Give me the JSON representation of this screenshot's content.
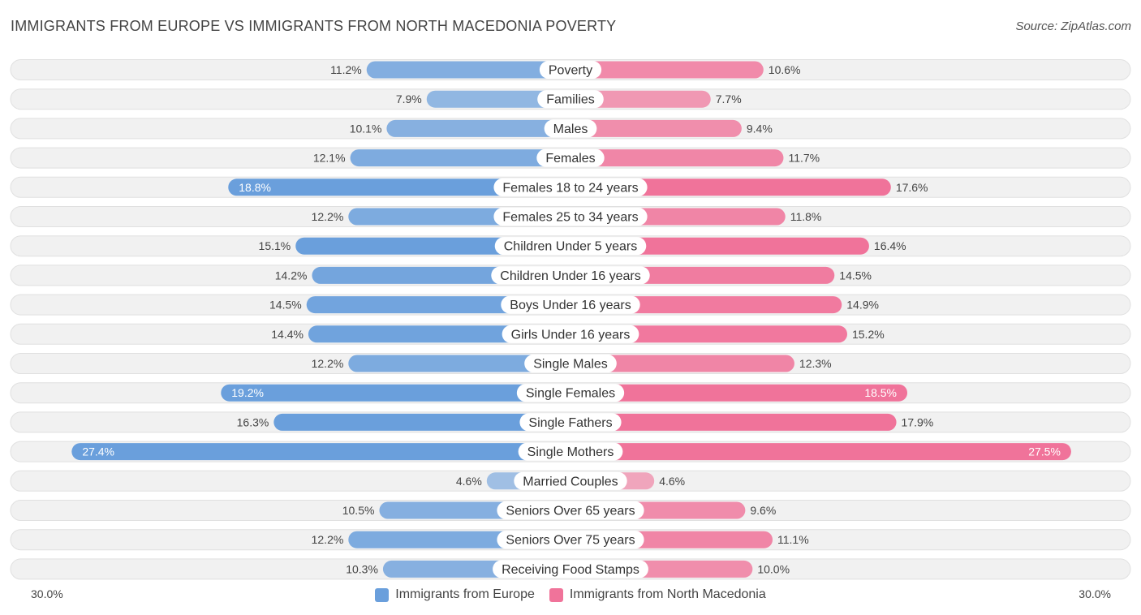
{
  "chart_data": {
    "type": "bar",
    "orientation": "horizontal-diverging",
    "title": "IMMIGRANTS FROM EUROPE VS IMMIGRANTS FROM NORTH MACEDONIA POVERTY",
    "source": "Source: ZipAtlas.com",
    "xlim": [
      0,
      30.0
    ],
    "axis_min_label": "30.0%",
    "axis_max_label": "30.0%",
    "categories": [
      "Poverty",
      "Families",
      "Males",
      "Females",
      "Females 18 to 24 years",
      "Females 25 to 34 years",
      "Children Under 5 years",
      "Children Under 16 years",
      "Boys Under 16 years",
      "Girls Under 16 years",
      "Single Males",
      "Single Females",
      "Single Fathers",
      "Single Mothers",
      "Married Couples",
      "Seniors Over 65 years",
      "Seniors Over 75 years",
      "Receiving Food Stamps"
    ],
    "series": [
      {
        "name": "Immigrants from Europe",
        "color": "#6a9fdc",
        "values": [
          11.2,
          7.9,
          10.1,
          12.1,
          18.8,
          12.2,
          15.1,
          14.2,
          14.5,
          14.4,
          12.2,
          19.2,
          16.3,
          27.4,
          4.6,
          10.5,
          12.2,
          10.3
        ],
        "labels": [
          "11.2%",
          "7.9%",
          "10.1%",
          "12.1%",
          "18.8%",
          "12.2%",
          "15.1%",
          "14.2%",
          "14.5%",
          "14.4%",
          "12.2%",
          "19.2%",
          "16.3%",
          "27.4%",
          "4.6%",
          "10.5%",
          "12.2%",
          "10.3%"
        ]
      },
      {
        "name": "Immigrants from North Macedonia",
        "color": "#f0739a",
        "values": [
          10.6,
          7.7,
          9.4,
          11.7,
          17.6,
          11.8,
          16.4,
          14.5,
          14.9,
          15.2,
          12.3,
          18.5,
          17.9,
          27.5,
          4.6,
          9.6,
          11.1,
          10.0
        ],
        "labels": [
          "10.6%",
          "7.7%",
          "9.4%",
          "11.7%",
          "17.6%",
          "11.8%",
          "16.4%",
          "14.5%",
          "14.9%",
          "15.2%",
          "12.3%",
          "18.5%",
          "17.9%",
          "27.5%",
          "4.6%",
          "9.6%",
          "11.1%",
          "10.0%"
        ]
      }
    ]
  }
}
